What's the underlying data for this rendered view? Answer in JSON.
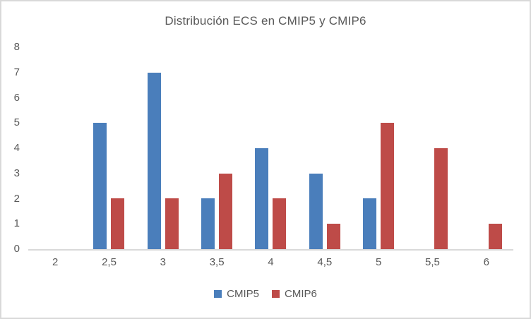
{
  "figure": {
    "background": "#ffffff",
    "border_color": "#d9d9d9",
    "text_color": "#595959",
    "axis_line_color": "#d9d9d9"
  },
  "chart_data": {
    "type": "bar",
    "title": "Distribución ECS en CMIP5 y CMIP6",
    "categories": [
      "2",
      "2,5",
      "3",
      "3,5",
      "4",
      "4,5",
      "5",
      "5,5",
      "6"
    ],
    "series": [
      {
        "name": "CMIP5",
        "color": "#4a7ebb",
        "values": [
          0,
          5,
          7,
          2,
          4,
          3,
          2,
          0,
          0
        ]
      },
      {
        "name": "CMIP6",
        "color": "#be4b48",
        "values": [
          0,
          2,
          2,
          3,
          2,
          1,
          5,
          4,
          1
        ]
      }
    ],
    "xlabel": "",
    "ylabel": "",
    "ylim": [
      0,
      8
    ],
    "y_ticks": [
      0,
      1,
      2,
      3,
      4,
      5,
      6,
      7,
      8
    ],
    "grid": false,
    "legend_position": "bottom"
  }
}
